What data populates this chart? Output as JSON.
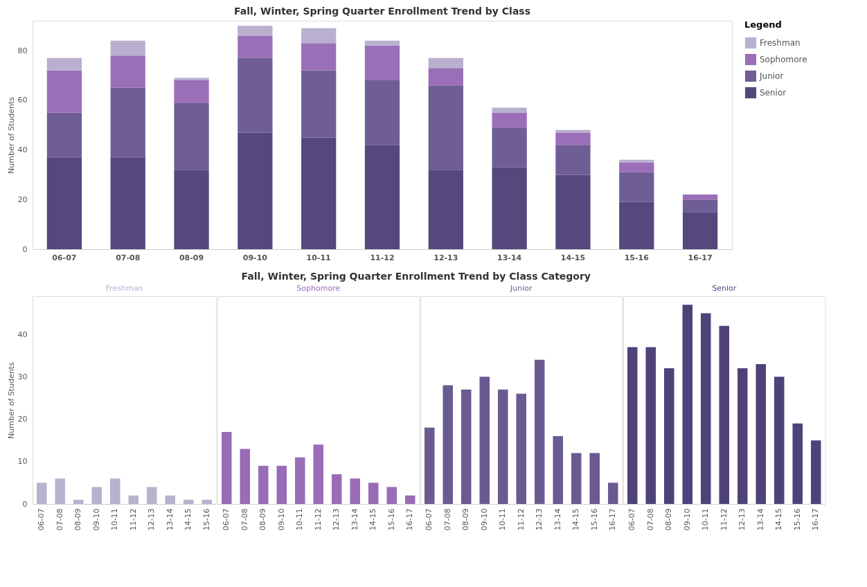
{
  "chart_data": [
    {
      "type": "bar",
      "title": "Fall, Winter, Spring Quarter Enrollment Trend by Class",
      "ylabel": "Number of Students",
      "legend_title": "Legend",
      "legend": "top right",
      "stacked": true,
      "categories": [
        "06-07",
        "07-08",
        "08-09",
        "09-10",
        "10-11",
        "11-12",
        "12-13",
        "13-14",
        "14-15",
        "15-16",
        "16-17"
      ],
      "ylim": [
        0,
        92
      ],
      "yticks": [
        0,
        20,
        40,
        60,
        80
      ],
      "series": [
        {
          "name": "Senior",
          "color": "#56477d",
          "values": [
            37,
            37,
            32,
            47,
            45,
            42,
            32,
            33,
            30,
            19,
            15
          ]
        },
        {
          "name": "Junior",
          "color": "#6f5d96",
          "values": [
            18,
            28,
            27,
            30,
            27,
            26,
            34,
            16,
            12,
            12,
            5
          ]
        },
        {
          "name": "Sophomore",
          "color": "#9b6fb8",
          "values": [
            17,
            13,
            9,
            9,
            11,
            14,
            7,
            6,
            5,
            4,
            2
          ]
        },
        {
          "name": "Freshman",
          "color": "#b9b0d0",
          "values": [
            5,
            6,
            1,
            4,
            6,
            2,
            4,
            2,
            1,
            1,
            null
          ]
        }
      ]
    },
    {
      "type": "bar",
      "title": "Fall, Winter, Spring Quarter Enrollment Trend by Class Category",
      "ylabel": "Number of Students",
      "categories": [
        "06-07",
        "07-08",
        "08-09",
        "09-10",
        "10-11",
        "11-12",
        "12-13",
        "13-14",
        "14-15",
        "15-16",
        "06-07",
        "07-08",
        "08-09",
        "09-10",
        "10-11",
        "11-12",
        "12-13",
        "13-14",
        "14-15",
        "15-16",
        "16-17",
        "06-07",
        "07-08",
        "08-09",
        "09-10",
        "10-11",
        "11-12",
        "12-13",
        "13-14",
        "14-15",
        "15-16",
        "16-17",
        "06-07",
        "07-08",
        "08-09",
        "09-10",
        "10-11",
        "11-12",
        "12-13",
        "13-14",
        "14-15",
        "15-16",
        "16-17"
      ],
      "ylim": [
        0,
        49
      ],
      "yticks": [
        0,
        10,
        20,
        30,
        40
      ],
      "series": [
        {
          "name": "Freshman",
          "color": "#b8b2cf",
          "values": [
            5,
            6,
            1,
            4,
            6,
            2,
            4,
            2,
            1,
            1,
            null,
            null,
            null,
            null,
            null,
            null,
            null,
            null,
            null,
            null,
            null,
            null,
            null,
            null,
            null,
            null,
            null,
            null,
            null,
            null,
            null,
            null,
            null,
            null,
            null,
            null,
            null,
            null,
            null,
            null,
            null,
            null,
            null
          ]
        },
        {
          "name": "Sophomore",
          "color": "#9a6bb6",
          "values": [
            null,
            null,
            null,
            null,
            null,
            null,
            null,
            null,
            null,
            null,
            17,
            13,
            9,
            9,
            11,
            14,
            7,
            6,
            5,
            4,
            2,
            null,
            null,
            null,
            null,
            null,
            null,
            null,
            null,
            null,
            null,
            null,
            null,
            null,
            null,
            null,
            null,
            null,
            null,
            null,
            null,
            null,
            null
          ]
        },
        {
          "name": "Junior",
          "color": "#6a5a92",
          "values": [
            null,
            null,
            null,
            null,
            null,
            null,
            null,
            null,
            null,
            null,
            null,
            null,
            null,
            null,
            null,
            null,
            null,
            null,
            null,
            null,
            null,
            18,
            28,
            27,
            30,
            27,
            26,
            34,
            16,
            12,
            12,
            5,
            null,
            null,
            null,
            null,
            null,
            null,
            null,
            null,
            null,
            null,
            null
          ]
        },
        {
          "name": "Senior",
          "color": "#4f4279",
          "values": [
            null,
            null,
            null,
            null,
            null,
            null,
            null,
            null,
            null,
            null,
            null,
            null,
            null,
            null,
            null,
            null,
            null,
            null,
            null,
            null,
            null,
            null,
            null,
            null,
            null,
            null,
            null,
            null,
            null,
            null,
            null,
            null,
            37,
            37,
            32,
            47,
            45,
            42,
            32,
            33,
            30,
            19,
            15
          ]
        }
      ]
    }
  ]
}
